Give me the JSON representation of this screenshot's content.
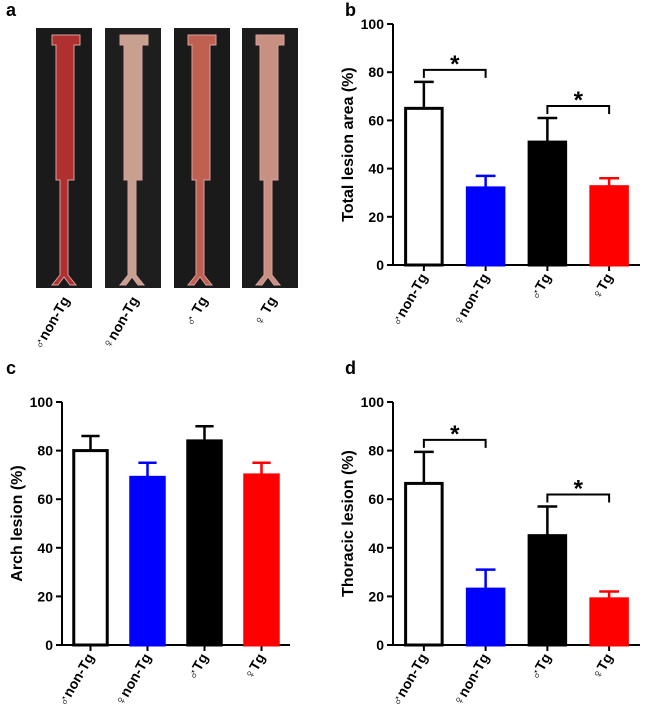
{
  "photo_panel": {
    "panel_label": "a",
    "captions": [
      "♂non-Tg",
      "♀non-Tg",
      "♂ Tg",
      "♀ Tg"
    ]
  },
  "chart_data": [
    {
      "type": "bar",
      "panel_label": "b",
      "ylabel": "Total lesion area (%)",
      "categories": [
        "♂non-Tg",
        "♀non-Tg",
        "♂Tg",
        "♀Tg"
      ],
      "values": [
        65,
        32,
        51,
        32.5
      ],
      "errors": [
        11,
        5,
        10,
        3.5
      ],
      "colors": [
        "#ffffff",
        "#0000ff",
        "#000000",
        "#ff0000"
      ],
      "edgecolor": "#000000",
      "ylim": [
        0,
        100
      ],
      "yticks": [
        0,
        20,
        40,
        60,
        80,
        100
      ],
      "annotations": [
        {
          "text": "*",
          "between": [
            0,
            1
          ]
        },
        {
          "text": "*",
          "between": [
            2,
            3
          ]
        }
      ]
    },
    {
      "type": "bar",
      "panel_label": "c",
      "ylabel": "Arch lesion (%)",
      "categories": [
        "♂non-Tg",
        "♀non-Tg",
        "♂Tg",
        "♀Tg"
      ],
      "values": [
        80,
        69,
        84,
        70
      ],
      "errors": [
        6,
        6,
        6,
        5
      ],
      "colors": [
        "#ffffff",
        "#0000ff",
        "#000000",
        "#ff0000"
      ],
      "edgecolor": "#000000",
      "ylim": [
        0,
        100
      ],
      "yticks": [
        0,
        20,
        40,
        60,
        80,
        100
      ],
      "annotations": []
    },
    {
      "type": "bar",
      "panel_label": "d",
      "ylabel": "Thoracic lesion (%)",
      "categories": [
        "♂non-Tg",
        "♀non-Tg",
        "♂Tg",
        "♀Tg"
      ],
      "values": [
        66.5,
        23,
        45,
        19
      ],
      "errors": [
        13,
        8,
        12,
        3
      ],
      "colors": [
        "#ffffff",
        "#0000ff",
        "#000000",
        "#ff0000"
      ],
      "edgecolor": "#000000",
      "ylim": [
        0,
        100
      ],
      "yticks": [
        0,
        20,
        40,
        60,
        80,
        100
      ],
      "annotations": [
        {
          "text": "*",
          "between": [
            0,
            1
          ]
        },
        {
          "text": "*",
          "between": [
            2,
            3
          ]
        }
      ]
    }
  ]
}
